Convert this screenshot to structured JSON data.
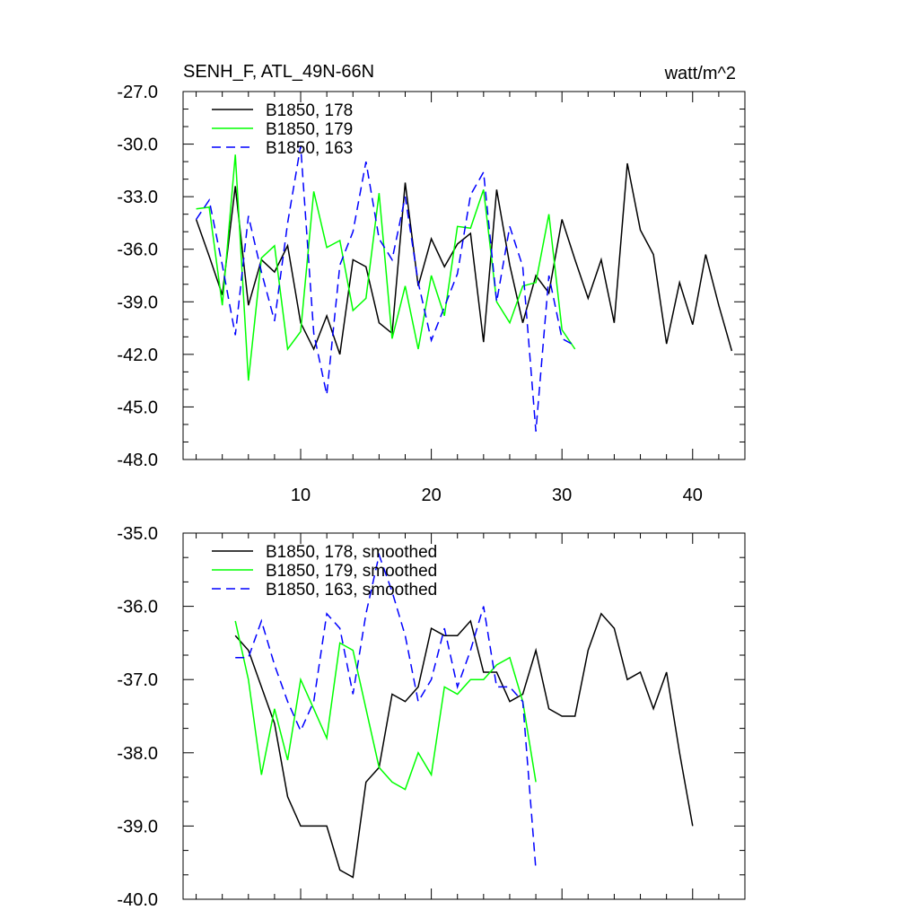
{
  "header": {
    "title": "SENH_F, ATL_49N-66N",
    "units": "watt/m^2"
  },
  "chart_data": [
    {
      "type": "line",
      "xlim": [
        1,
        44
      ],
      "ylim": [
        -48,
        -27
      ],
      "yticks": [
        -48,
        -45,
        -42,
        -39,
        -36,
        -33,
        -30,
        -27
      ],
      "ytick_labels": [
        "-48.0",
        "-45.0",
        "-42.0",
        "-39.0",
        "-36.0",
        "-33.0",
        "-30.0",
        "-27.0"
      ],
      "xticks": [
        10,
        20,
        30,
        40
      ],
      "xtick_labels": [
        "10",
        "20",
        "30",
        "40"
      ],
      "legend_position": "top-left",
      "grid": false,
      "series": [
        {
          "name": "B1850, 178",
          "color": "#000000",
          "dash": "solid",
          "x": [
            2,
            3,
            4,
            5,
            6,
            7,
            8,
            9,
            10,
            11,
            12,
            13,
            14,
            15,
            16,
            17,
            18,
            19,
            20,
            21,
            22,
            23,
            24,
            25,
            26,
            27,
            28,
            29,
            30,
            31,
            32,
            33,
            34,
            35,
            36,
            37,
            38,
            39,
            40,
            41,
            42,
            43
          ],
          "values": [
            -34.3,
            -36.4,
            -38.6,
            -32.4,
            -39.2,
            -36.6,
            -37.3,
            -35.8,
            -40.2,
            -41.7,
            -39.8,
            -42.0,
            -36.6,
            -37.0,
            -40.2,
            -40.8,
            -32.2,
            -38.1,
            -35.4,
            -37.0,
            -35.7,
            -35.1,
            -41.3,
            -32.6,
            -36.9,
            -40.2,
            -37.5,
            -38.5,
            -34.3,
            -36.6,
            -38.8,
            -36.6,
            -40.2,
            -31.1,
            -34.9,
            -36.3,
            -41.4,
            -37.9,
            -40.3,
            -36.3,
            -39.2,
            -41.8
          ]
        },
        {
          "name": "B1850, 179",
          "color": "#00ff00",
          "dash": "solid",
          "x": [
            2,
            3,
            4,
            5,
            6,
            7,
            8,
            9,
            10,
            11,
            12,
            13,
            14,
            15,
            16,
            17,
            18,
            19,
            20,
            21,
            22,
            23,
            24,
            25,
            26,
            27,
            28,
            29,
            30,
            31
          ],
          "values": [
            -33.7,
            -33.6,
            -39.2,
            -30.6,
            -43.5,
            -36.5,
            -35.8,
            -41.7,
            -40.7,
            -32.7,
            -35.9,
            -35.5,
            -39.5,
            -38.8,
            -32.8,
            -41.1,
            -38.1,
            -41.7,
            -37.5,
            -39.8,
            -34.7,
            -34.8,
            -32.6,
            -39.0,
            -40.2,
            -38.1,
            -37.9,
            -34.0,
            -40.6,
            -41.7
          ]
        },
        {
          "name": "B1850, 163",
          "color": "#0000ff",
          "dash": "dashed",
          "x": [
            2,
            3,
            4,
            5,
            6,
            7,
            8,
            9,
            10,
            11,
            12,
            13,
            14,
            15,
            16,
            17,
            18,
            19,
            20,
            21,
            22,
            23,
            24,
            25,
            26,
            27,
            28,
            29,
            30,
            31
          ],
          "values": [
            -34.3,
            -33.2,
            -36.9,
            -40.9,
            -34.1,
            -37.3,
            -40.1,
            -34.5,
            -30.1,
            -40.8,
            -44.3,
            -36.9,
            -35.0,
            -31.0,
            -35.4,
            -36.6,
            -33.0,
            -37.9,
            -41.2,
            -39.3,
            -37.4,
            -32.9,
            -31.6,
            -39.0,
            -34.7,
            -37.0,
            -46.4,
            -37.5,
            -41.1,
            -41.5
          ]
        }
      ]
    },
    {
      "type": "line",
      "xlim": [
        1,
        44
      ],
      "ylim": [
        -40,
        -35
      ],
      "yticks": [
        -40,
        -39,
        -38,
        -37,
        -36,
        -35
      ],
      "ytick_labels": [
        "-40.0",
        "-39.0",
        "-38.0",
        "-37.0",
        "-36.0",
        "-35.0"
      ],
      "xticks": [
        10,
        20,
        30,
        40
      ],
      "legend_position": "top-left",
      "grid": false,
      "series": [
        {
          "name": "B1850, 178, smoothed",
          "color": "#000000",
          "dash": "solid",
          "x": [
            5,
            6,
            7,
            8,
            9,
            10,
            11,
            12,
            13,
            14,
            15,
            16,
            17,
            18,
            19,
            20,
            21,
            22,
            23,
            24,
            25,
            26,
            27,
            28,
            29,
            30,
            31,
            32,
            33,
            34,
            35,
            36,
            37,
            38,
            39,
            40
          ],
          "values": [
            -36.4,
            -36.6,
            -37.1,
            -37.6,
            -38.6,
            -39.0,
            -39.0,
            -39.0,
            -39.6,
            -39.7,
            -38.4,
            -38.2,
            -37.2,
            -37.3,
            -37.1,
            -36.3,
            -36.4,
            -36.4,
            -36.2,
            -36.9,
            -36.9,
            -37.3,
            -37.2,
            -36.6,
            -37.4,
            -37.5,
            -37.5,
            -36.6,
            -36.1,
            -36.3,
            -37.0,
            -36.9,
            -37.4,
            -36.9,
            -38.0,
            -39.0
          ]
        },
        {
          "name": "B1850, 179, smoothed",
          "color": "#00ff00",
          "dash": "solid",
          "x": [
            5,
            6,
            7,
            8,
            9,
            10,
            11,
            12,
            13,
            14,
            15,
            16,
            17,
            18,
            19,
            20,
            21,
            22,
            23,
            24,
            25,
            26,
            27,
            28
          ],
          "values": [
            -36.2,
            -37.0,
            -38.3,
            -37.4,
            -38.1,
            -37.0,
            -37.4,
            -37.8,
            -36.5,
            -36.6,
            -37.4,
            -38.2,
            -38.4,
            -38.5,
            -38.0,
            -38.3,
            -37.1,
            -37.2,
            -37.0,
            -37.0,
            -36.8,
            -36.7,
            -37.3,
            -38.4
          ]
        },
        {
          "name": "B1850, 163, smoothed",
          "color": "#0000ff",
          "dash": "dashed",
          "x": [
            5,
            6,
            7,
            8,
            9,
            10,
            11,
            12,
            13,
            14,
            15,
            16,
            17,
            18,
            19,
            20,
            21,
            22,
            23,
            24,
            25,
            26,
            27,
            28
          ],
          "values": [
            -36.7,
            -36.7,
            -36.2,
            -36.8,
            -37.3,
            -37.7,
            -37.3,
            -36.1,
            -36.3,
            -37.2,
            -36.1,
            -35.3,
            -35.8,
            -36.4,
            -37.3,
            -37.0,
            -36.3,
            -37.1,
            -36.6,
            -36.0,
            -37.1,
            -37.1,
            -37.3,
            -39.6
          ]
        }
      ]
    }
  ]
}
